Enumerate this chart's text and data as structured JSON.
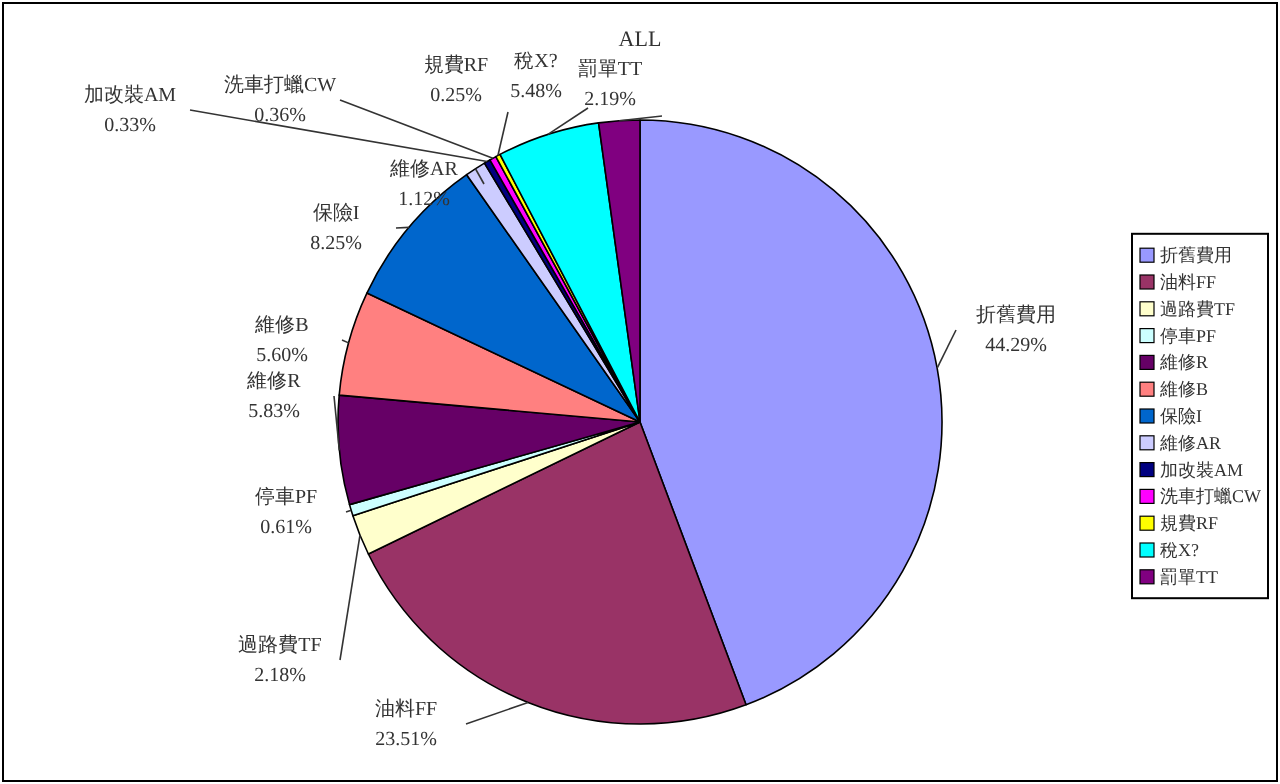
{
  "chart_data": {
    "type": "pie",
    "title": "ALL",
    "categories": [
      "折舊費用",
      "油料FF",
      "過路費TF",
      "停車PF",
      "維修R",
      "維修B",
      "保險I",
      "維修AR",
      "加改裝AM",
      "洗車打蠟CW",
      "規費RF",
      "稅X?",
      "罰單TT"
    ],
    "values": [
      44.29,
      23.51,
      2.18,
      0.61,
      5.83,
      5.6,
      8.25,
      1.12,
      0.33,
      0.36,
      0.25,
      5.48,
      2.19
    ],
    "value_labels": [
      "44.29%",
      "23.51%",
      "2.18%",
      "0.61%",
      "5.83%",
      "5.60%",
      "8.25%",
      "1.12%",
      "0.33%",
      "0.36%",
      "0.25%",
      "5.48%",
      "2.19%"
    ],
    "colors": [
      "#9999ff",
      "#993366",
      "#ffffcc",
      "#ccffff",
      "#660066",
      "#ff8080",
      "#0066cc",
      "#ccccff",
      "#000080",
      "#ff00ff",
      "#ffff00",
      "#00ffff",
      "#800080"
    ],
    "legend": "right"
  }
}
